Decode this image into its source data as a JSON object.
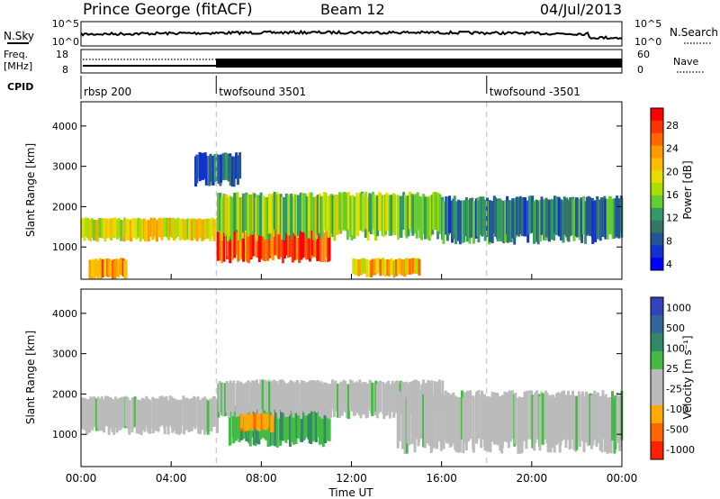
{
  "header": {
    "station": "Prince George (fitACF)",
    "beam": "Beam 12",
    "date": "04/Jul/2013"
  },
  "labels": {
    "nsky": "N.Sky",
    "nsearch": "N.Search",
    "freq_line1": "Freq.",
    "freq_line2": "[MHz]",
    "nave": "Nave",
    "cpid": "CPID"
  },
  "noise_axis": {
    "top": "10^5",
    "bottom": "10^0"
  },
  "freq_axis": {
    "top": "18",
    "bottom": "8"
  },
  "nave_axis": {
    "top": "60",
    "bottom": "0"
  },
  "cpid_segments": [
    {
      "label": "rbsp 200",
      "start_hour": 0
    },
    {
      "label": "twofsound 3501",
      "start_hour": 6
    },
    {
      "label": "twofsound -3501",
      "start_hour": 18
    }
  ],
  "power_colorbar": {
    "title": "Power [dB]",
    "ticks": [
      "28",
      "24",
      "20",
      "16",
      "12",
      "8",
      "4"
    ],
    "colors": [
      "#ff0000",
      "#ff3300",
      "#ff6600",
      "#ff9900",
      "#ffbb00",
      "#e6dd00",
      "#aadd00",
      "#66cc33",
      "#339966",
      "#337766",
      "#225599",
      "#1133cc",
      "#0000ff"
    ]
  },
  "velocity_colorbar": {
    "title": "Velocity [m s⁻¹]",
    "ticks": [
      "1000",
      "500",
      "100",
      "25",
      "-25",
      "-100",
      "-500",
      "-1000"
    ],
    "colors": [
      "#3344bb",
      "#336699",
      "#338866",
      "#44bb44",
      "#bbbbbb",
      "#bbbbbb",
      "#ffaa00",
      "#ff6600",
      "#ff2200"
    ]
  },
  "chart_data": [
    {
      "type": "heatmap",
      "quantity": "Power",
      "ylabel": "Slant Range [km]",
      "ylim": [
        200,
        4600
      ],
      "yticks": [
        1000,
        2000,
        3000,
        4000
      ],
      "xlim_hours": [
        0,
        24
      ],
      "echo_bands": [
        {
          "x0": 0,
          "x1": 6,
          "y0": 1200,
          "y1": 1700,
          "power_db": 18
        },
        {
          "x0": 0.3,
          "x1": 2,
          "y0": 250,
          "y1": 700,
          "power_db": 22
        },
        {
          "x0": 6,
          "x1": 11,
          "y0": 700,
          "y1": 1400,
          "power_db": 26
        },
        {
          "x0": 6,
          "x1": 16,
          "y0": 1300,
          "y1": 2300,
          "power_db": 14
        },
        {
          "x0": 12,
          "x1": 15,
          "y0": 300,
          "y1": 700,
          "power_db": 20
        },
        {
          "x0": 16,
          "x1": 24,
          "y0": 1200,
          "y1": 2200,
          "power_db": 8
        },
        {
          "x0": 5,
          "x1": 7,
          "y0": 2600,
          "y1": 3300,
          "power_db": 6
        }
      ]
    },
    {
      "type": "heatmap",
      "quantity": "Velocity",
      "ylabel": "Slant Range [km]",
      "ylim": [
        200,
        4600
      ],
      "yticks": [
        1000,
        2000,
        3000,
        4000
      ],
      "xlim_hours": [
        0,
        24
      ],
      "xlabel": "Time UT",
      "xticks": [
        "00:00",
        "04:00",
        "08:00",
        "12:00",
        "16:00",
        "20:00",
        "00:00"
      ],
      "echo_bands": [
        {
          "x0": 0,
          "x1": 6,
          "y0": 1100,
          "y1": 1900,
          "velocity": 0
        },
        {
          "x0": 6.5,
          "x1": 11,
          "y0": 800,
          "y1": 1700,
          "velocity": 150
        },
        {
          "x0": 6,
          "x1": 16,
          "y0": 1500,
          "y1": 2300,
          "velocity": 0
        },
        {
          "x0": 14,
          "x1": 24,
          "y0": 700,
          "y1": 2000,
          "velocity": 0
        },
        {
          "x0": 7,
          "x1": 8.5,
          "y0": 1100,
          "y1": 1500,
          "velocity": -300
        }
      ]
    }
  ]
}
